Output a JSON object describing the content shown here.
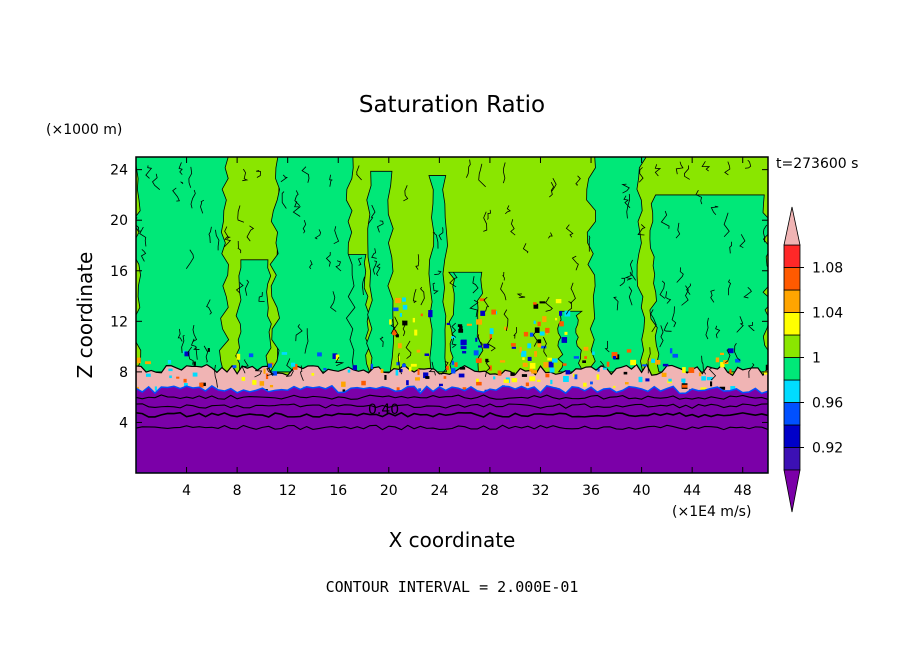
{
  "chart_data": {
    "type": "heatmap",
    "title": "Saturation Ratio",
    "xlabel": "X coordinate",
    "ylabel": "Z coordinate",
    "x_unit": "(×1E4 m/s)",
    "y_unit": "(×1000 m)",
    "time_label": "t=273600 s",
    "contour_interval_label": "CONTOUR INTERVAL = 2.000E-01",
    "xlim": [
      0,
      50
    ],
    "ylim": [
      0,
      25
    ],
    "xticks": [
      4,
      8,
      12,
      16,
      20,
      24,
      28,
      32,
      36,
      40,
      44,
      48
    ],
    "yticks": [
      4,
      8,
      12,
      16,
      20,
      24
    ],
    "contour_label": "0.40",
    "colorbar": {
      "levels": [
        0.9,
        0.92,
        0.94,
        0.96,
        0.98,
        1.0,
        1.02,
        1.04,
        1.06,
        1.08,
        1.1
      ],
      "tick_labels": [
        "1.08",
        "1.04",
        "1",
        "0.96",
        "0.92"
      ],
      "colors_bottom_to_top": [
        "#7b00a8",
        "#3c10b4",
        "#0000c8",
        "#0050ff",
        "#00dcff",
        "#00e878",
        "#8ae600",
        "#ffff00",
        "#ffa500",
        "#ff5a00",
        "#ff2828",
        "#f0b4b4"
      ]
    },
    "regions": {
      "boundary_layer_top_z": 6.5,
      "cloud_layer_top_z": 8,
      "lower_band_color": "#7b00a8",
      "mid_band_color": "#00e878",
      "upper_band_color": "#8ae600"
    }
  }
}
